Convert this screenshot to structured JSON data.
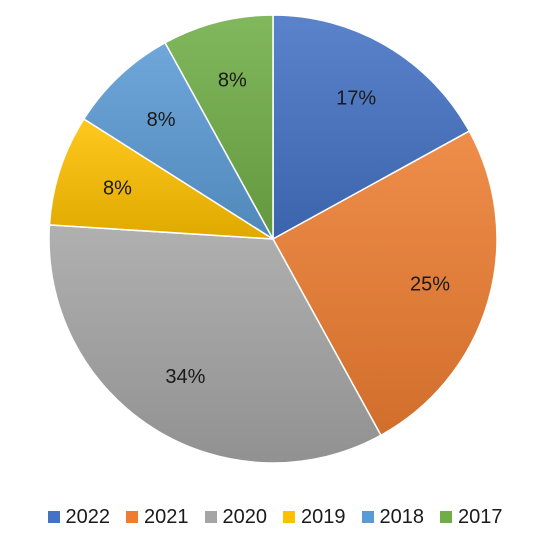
{
  "chart_data": {
    "type": "pie",
    "title": "",
    "legend_position": "bottom",
    "start_angle_deg": 0,
    "direction": "clockwise",
    "slices": [
      {
        "label": "2022",
        "value": 17,
        "display": "17%",
        "color": "#4472c4"
      },
      {
        "label": "2021",
        "value": 25,
        "display": "25%",
        "color": "#ed7d31"
      },
      {
        "label": "2020",
        "value": 34,
        "display": "34%",
        "color": "#a5a5a5"
      },
      {
        "label": "2019",
        "value": 8,
        "display": "8%",
        "color": "#ffc000"
      },
      {
        "label": "2018",
        "value": 8,
        "display": "8%",
        "color": "#5b9bd5"
      },
      {
        "label": "2017",
        "value": 8,
        "display": "8%",
        "color": "#70ad47"
      }
    ]
  }
}
